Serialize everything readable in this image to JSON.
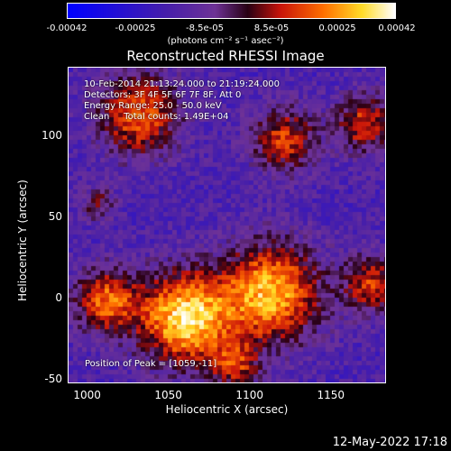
{
  "colorbar": {
    "ticks": [
      "-0.00042",
      "-0.00025",
      "-8.5e-05",
      "8.5e-05",
      "0.00025",
      "0.00042"
    ],
    "unit_label": "(photons cm⁻² s⁻¹ asec⁻²)"
  },
  "chart_data": {
    "type": "heatmap",
    "title": "Reconstructed RHESSI Image",
    "xlabel": "Heliocentric X (arcsec)",
    "ylabel": "Heliocentric Y (arcsec)",
    "xlim": [
      988,
      1184
    ],
    "ylim": [
      -52,
      143
    ],
    "xticks": [
      "1000",
      "1050",
      "1100",
      "1150"
    ],
    "yticks": [
      "100",
      "50",
      "0",
      "-50"
    ],
    "colorbar_range": [
      -0.00042,
      0.00042
    ],
    "colormap": "blue-purple-red-orange-yellow-white",
    "peak_position": [
      1059,
      -11
    ],
    "annotations": [
      "10-Feb-2014 21:13:24.000 to 21:19:24.000",
      "Detectors: 3F 4F 5F 6F 7F 8F, Att 0",
      "Energy Range: 25.0 - 50.0 keV",
      "Clean     Total counts: 1.49E+04"
    ],
    "peak_label": "Position of Peak = [1059,-11]"
  },
  "footer": {
    "date": "12-May-2022 17:18"
  }
}
